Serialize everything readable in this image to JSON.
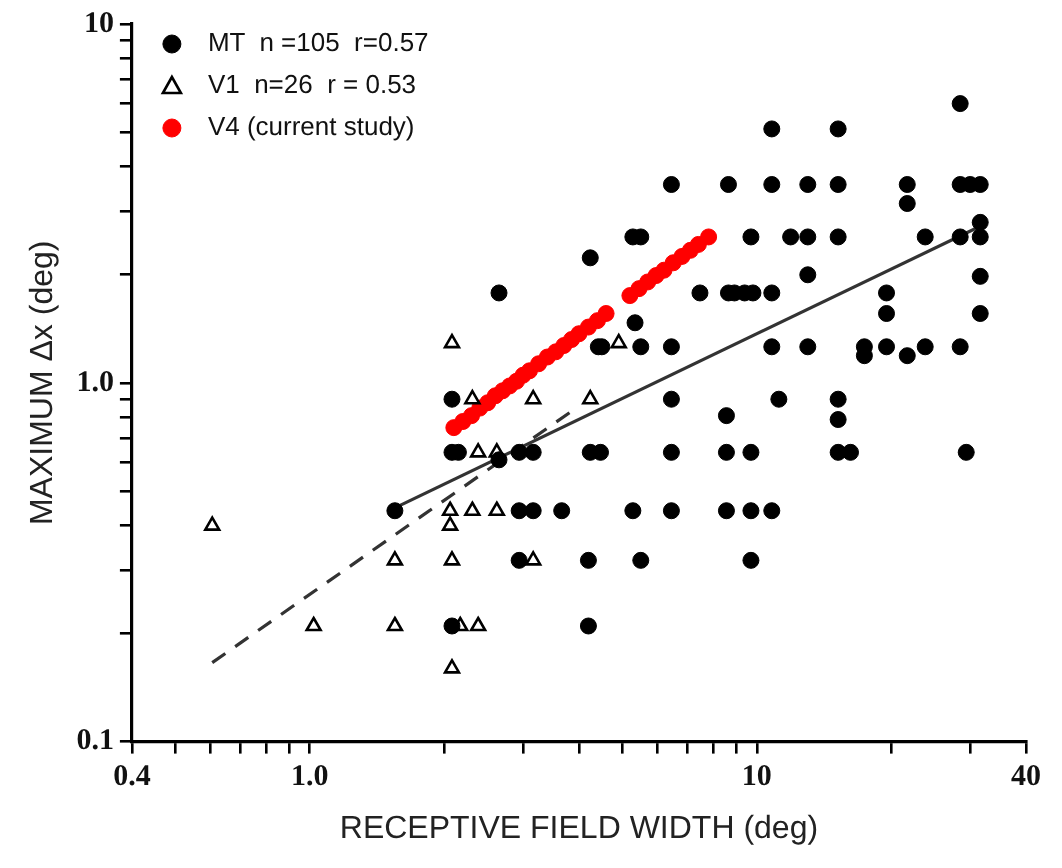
{
  "chart_data": {
    "type": "scatter",
    "xlabel": "RECEPTIVE FIELD WIDTH (deg)",
    "ylabel": "MAXIMUM Δx (deg)",
    "log": "xy",
    "grid": false,
    "legend": "top left",
    "xlim": [
      0.4,
      40
    ],
    "xticks": [
      0.4,
      {
        "value": 0.5,
        "label": null
      },
      {
        "value": 0.6,
        "label": null
      },
      {
        "value": 0.7,
        "label": null
      },
      {
        "value": 0.8,
        "label": null
      },
      {
        "value": 0.9,
        "label": null
      },
      {
        "value": 1,
        "label": "1.0"
      },
      {
        "value": 2,
        "label": null
      },
      {
        "value": 3,
        "label": null
      },
      {
        "value": 4,
        "label": null
      },
      {
        "value": 5,
        "label": null
      },
      {
        "value": 6,
        "label": null
      },
      {
        "value": 7,
        "label": null
      },
      {
        "value": 8,
        "label": null
      },
      {
        "value": 9,
        "label": null
      },
      10,
      {
        "value": 20,
        "label": null
      },
      {
        "value": 30,
        "label": null
      },
      40
    ],
    "ylim": [
      0.1,
      10
    ],
    "yticks": [
      0.1,
      {
        "value": 0.2,
        "label": null
      },
      {
        "value": 0.3,
        "label": null
      },
      {
        "value": 0.4,
        "label": null
      },
      {
        "value": 0.5,
        "label": null
      },
      {
        "value": 0.6,
        "label": null
      },
      {
        "value": 0.7,
        "label": null
      },
      {
        "value": 0.8,
        "label": null
      },
      {
        "value": 0.9,
        "label": null
      },
      {
        "value": 1,
        "label": "1.0"
      },
      {
        "value": 2,
        "label": null
      },
      {
        "value": 3,
        "label": null
      },
      {
        "value": 4,
        "label": null
      },
      {
        "value": 5,
        "label": null
      },
      {
        "value": 6,
        "label": null
      },
      {
        "value": 7,
        "label": null
      },
      {
        "value": 8,
        "label": null
      },
      {
        "value": 9,
        "label": null
      },
      10
    ],
    "series": [
      {
        "name": "MT  n =105  r=0.57",
        "color": "#000000",
        "marker": "circle",
        "x": [
          28.5,
          10.8,
          15.2,
          6.44,
          8.64,
          10.8,
          13.0,
          15.2,
          21.7,
          28.5,
          30.0,
          31.6,
          21.7,
          5.28,
          5.5,
          9.7,
          11.9,
          13.0,
          15.2,
          23.8,
          28.5,
          31.6,
          31.6,
          4.24,
          13.0,
          31.6,
          7.46,
          8.64,
          8.91,
          9.39,
          9.8,
          10.8,
          19.5,
          19.5,
          31.6,
          5.34,
          2.65,
          4.42,
          4.5,
          5.5,
          6.44,
          10.8,
          13.0,
          17.4,
          19.5,
          23.8,
          28.5,
          17.4,
          21.7,
          2.08,
          6.44,
          11.2,
          15.2,
          15.2,
          8.55,
          2.08,
          2.15,
          2.65,
          2.94,
          3.16,
          4.24,
          4.47,
          6.44,
          8.55,
          9.7,
          15.2,
          16.2,
          29.4,
          1.55,
          2.94,
          3.16,
          3.66,
          5.28,
          6.44,
          8.55,
          9.7,
          10.8,
          2.94,
          4.2,
          5.5,
          9.7,
          2.08,
          4.2
        ],
        "values": [
          6.0,
          5.1,
          5.1,
          3.57,
          3.57,
          3.57,
          3.57,
          3.57,
          3.57,
          3.57,
          3.57,
          3.57,
          3.16,
          2.55,
          2.55,
          2.55,
          2.55,
          2.55,
          2.55,
          2.55,
          2.55,
          2.55,
          2.8,
          2.23,
          2.0,
          1.98,
          1.78,
          1.78,
          1.78,
          1.78,
          1.78,
          1.78,
          1.78,
          1.56,
          1.56,
          1.47,
          1.78,
          1.26,
          1.26,
          1.26,
          1.26,
          1.26,
          1.26,
          1.26,
          1.26,
          1.26,
          1.26,
          1.19,
          1.19,
          0.9,
          0.9,
          0.9,
          0.9,
          0.79,
          0.81,
          0.64,
          0.64,
          0.61,
          0.64,
          0.64,
          0.64,
          0.64,
          0.64,
          0.64,
          0.64,
          0.64,
          0.64,
          0.64,
          0.44,
          0.44,
          0.44,
          0.44,
          0.44,
          0.44,
          0.44,
          0.44,
          0.44,
          0.32,
          0.32,
          0.32,
          0.32,
          0.21,
          0.21
        ]
      },
      {
        "name": "V1  n=26  r = 0.53",
        "color": "#000000",
        "marker": "triangle",
        "x": [
          0.605,
          1.02,
          1.55,
          1.55,
          2.06,
          2.06,
          2.31,
          2.62,
          2.08,
          2.08,
          3.16,
          2.17,
          2.38,
          2.08,
          4.91,
          4.24,
          2.31,
          3.16,
          2.38,
          2.62
        ],
        "values": [
          0.4,
          0.21,
          0.32,
          0.21,
          0.4,
          0.44,
          0.44,
          0.44,
          0.32,
          0.16,
          0.32,
          0.21,
          0.21,
          1.29,
          1.29,
          0.9,
          0.9,
          0.9,
          0.64,
          0.64
        ]
      },
      {
        "name": "V4 (current study)",
        "color": "#ff0000",
        "marker": "circle",
        "x": [
          2.1,
          2.2,
          2.3,
          2.4,
          2.5,
          2.6,
          2.7,
          2.8,
          2.9,
          3.0,
          3.1,
          3.25,
          3.4,
          3.55,
          3.7,
          3.85,
          4.0,
          4.2,
          4.4,
          4.6,
          5.2,
          5.45,
          5.7,
          5.95,
          6.2,
          6.5,
          6.8,
          7.1,
          7.4,
          7.8
        ],
        "values": [
          0.75,
          0.78,
          0.81,
          0.85,
          0.88,
          0.92,
          0.95,
          0.98,
          1.01,
          1.05,
          1.08,
          1.13,
          1.18,
          1.22,
          1.27,
          1.32,
          1.37,
          1.43,
          1.49,
          1.56,
          1.75,
          1.83,
          1.91,
          1.99,
          2.06,
          2.16,
          2.25,
          2.34,
          2.43,
          2.55
        ]
      },
      {
        "type": "line",
        "color": "#333333",
        "line_style": "solid",
        "x": [
          1.55,
          31.6
        ],
        "values": [
          0.448,
          2.73
        ]
      },
      {
        "type": "line",
        "color": "#333333",
        "line_style": "dashed",
        "x": [
          0.605,
          3.94
        ],
        "values": [
          0.166,
          0.85
        ]
      }
    ]
  }
}
